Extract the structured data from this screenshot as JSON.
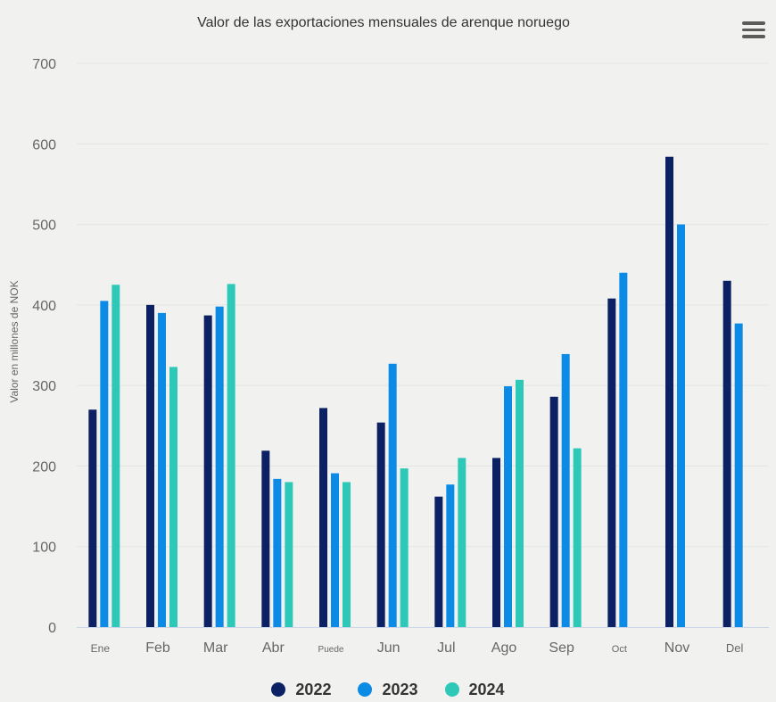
{
  "chart_data": {
    "type": "bar",
    "title": "Valor de las exportaciones mensuales de arenque noruego",
    "xlabel": "",
    "ylabel": "Valor en millones de NOK",
    "ylim": [
      0,
      700
    ],
    "yticks": [
      "0",
      "100",
      "200",
      "300",
      "400",
      "500",
      "600",
      "700"
    ],
    "categories": [
      "Ene",
      "Feb",
      "Mar",
      "Abr",
      "Puede",
      "Jun",
      "Jul",
      "Ago",
      "Sep",
      "Oct",
      "Nov",
      "Del"
    ],
    "grid": true,
    "legend_position": "bottom",
    "series": [
      {
        "name": "2022",
        "color": "#0b2164",
        "values": [
          270,
          400,
          387,
          219,
          272,
          254,
          162,
          210,
          286,
          408,
          584,
          430
        ]
      },
      {
        "name": "2023",
        "color": "#0b8ae6",
        "values": [
          405,
          390,
          398,
          184,
          191,
          327,
          177,
          299,
          339,
          440,
          500,
          377
        ]
      },
      {
        "name": "2024",
        "color": "#2ec8b8",
        "values": [
          425,
          323,
          426,
          180,
          180,
          197,
          210,
          307,
          222,
          null,
          null,
          null
        ]
      }
    ]
  },
  "menu": {
    "icon": "hamburger-menu-icon"
  }
}
